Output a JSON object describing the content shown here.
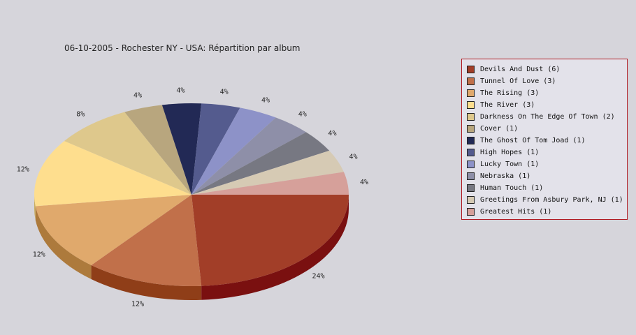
{
  "chart_data": {
    "type": "pie",
    "title": "06-10-2005 - Rochester NY - USA:  Répartition par album",
    "legend_position": "right",
    "slices": [
      {
        "label": "Devils And Dust (6)",
        "value": 6,
        "percent_label": "24%",
        "color": "#a23e28",
        "side": "#7a1010"
      },
      {
        "label": "Tunnel Of Love (3)",
        "value": 3,
        "percent_label": "12%",
        "color": "#c1704a",
        "side": "#8f3e18"
      },
      {
        "label": "The Rising (3)",
        "value": 3,
        "percent_label": "12%",
        "color": "#e0a96c",
        "side": "#ad7a3c"
      },
      {
        "label": "The River (3)",
        "value": 3,
        "percent_label": "12%",
        "color": "#fede8e",
        "side": "#c9ad60"
      },
      {
        "label": "Darkness On The Edge Of Town (2)",
        "value": 2,
        "percent_label": "8%",
        "color": "#dec88c",
        "side": "#ad995c"
      },
      {
        "label": "Cover (1)",
        "value": 1,
        "percent_label": "4%",
        "color": "#b8a67e",
        "side": "#8a7a56"
      },
      {
        "label": "The Ghost Of Tom Joad (1)",
        "value": 1,
        "percent_label": "4%",
        "color": "#222955",
        "side": "#131733"
      },
      {
        "label": "High Hopes (1)",
        "value": 1,
        "percent_label": "4%",
        "color": "#545b8e",
        "side": "#353a60"
      },
      {
        "label": "Lucky Town (1)",
        "value": 1,
        "percent_label": "4%",
        "color": "#8d92c8",
        "side": "#60659a"
      },
      {
        "label": "Nebraska (1)",
        "value": 1,
        "percent_label": "4%",
        "color": "#8e8fa8",
        "side": "#63647c"
      },
      {
        "label": "Human Touch (1)",
        "value": 1,
        "percent_label": "4%",
        "color": "#777882",
        "side": "#52535c"
      },
      {
        "label": "Greetings From Asbury Park, NJ (1)",
        "value": 1,
        "percent_label": "4%",
        "color": "#d6cab4",
        "side": "#a89c86"
      },
      {
        "label": "Greatest Hits (1)",
        "value": 1,
        "percent_label": "4%",
        "color": "#d6a09a",
        "side": "#a8726c"
      }
    ]
  }
}
